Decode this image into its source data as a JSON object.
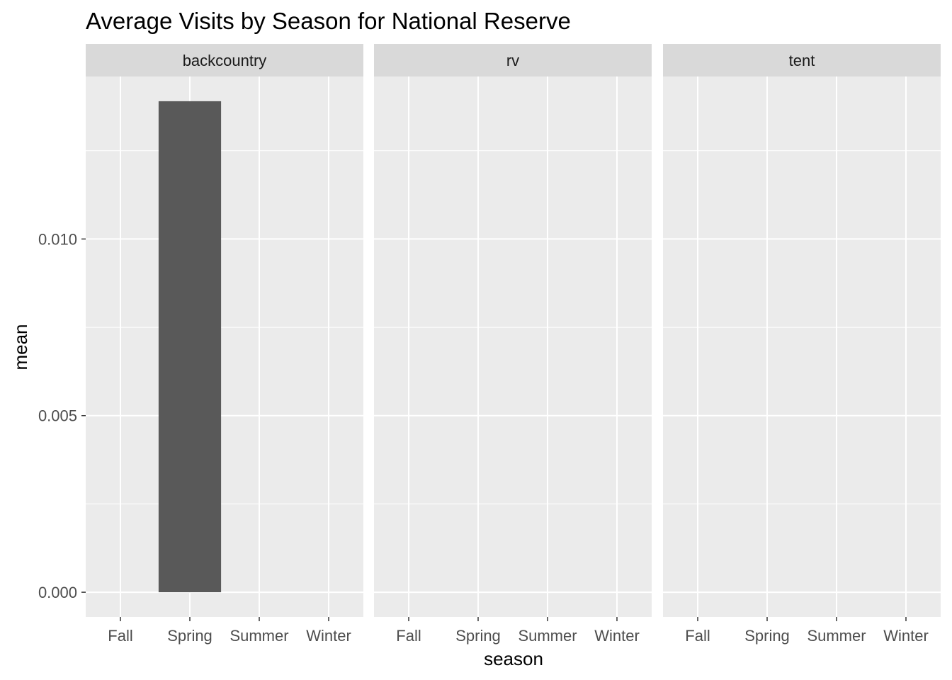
{
  "chart_data": {
    "type": "bar",
    "title": "Average Visits by Season for National Reserve",
    "xlabel": "season",
    "ylabel": "mean",
    "categories": [
      "Fall",
      "Spring",
      "Summer",
      "Winter"
    ],
    "ylim": [
      -0.0007,
      0.0146
    ],
    "y_ticks": [
      0.0,
      0.005,
      0.01
    ],
    "y_tick_labels": [
      "0.000",
      "0.005",
      "0.010"
    ],
    "grid": true,
    "facets": [
      {
        "label": "backcountry",
        "values": [
          0,
          0.0139,
          0,
          0
        ]
      },
      {
        "label": "rv",
        "values": [
          0,
          0,
          0,
          0
        ]
      },
      {
        "label": "tent",
        "values": [
          0,
          0,
          0,
          0
        ]
      }
    ],
    "colors": {
      "bar": "#595959",
      "panel_bg": "#ebebeb",
      "strip_bg": "#d9d9d9",
      "grid": "#ffffff",
      "tick": "#333333"
    }
  }
}
